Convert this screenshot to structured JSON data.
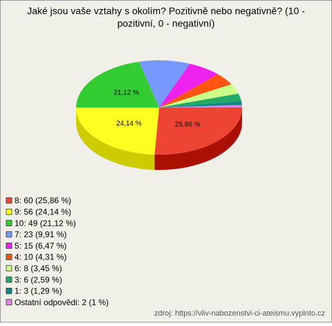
{
  "chart_data": {
    "type": "pie",
    "title": "Jaké jsou vaše vztahy s okolím? Pozitivně nebo negativně? (10 -",
    "subtitle": "pozitivní, 0 - negativní)",
    "categories": [
      "8",
      "9",
      "10",
      "7",
      "5",
      "4",
      "6",
      "3",
      "1",
      "Ostatní odpovědi"
    ],
    "legend_labels": [
      "8: 60 (25,86 %)",
      "9: 56 (24,14 %)",
      "10: 49 (21,12 %)",
      "7: 23 (9,91 %)",
      "5: 15 (6,47 %)",
      "4: 10 (4,31 %)",
      "6: 8 (3,45 %)",
      "3: 6 (2,59 %)",
      "1: 3 (1,29 %)",
      "Ostatní odpovědi: 2 (1 %)"
    ],
    "values": [
      25.86,
      24.14,
      21.12,
      9.91,
      6.47,
      4.31,
      3.45,
      2.59,
      1.29,
      0.86
    ],
    "value_labels": [
      "25,86 %",
      "24,14 %",
      "21,12 %",
      null,
      null,
      null,
      null,
      null,
      null,
      null
    ],
    "colors": [
      "#ee4433",
      "#ffff22",
      "#33cc33",
      "#7799ff",
      "#ee22ee",
      "#ff5511",
      "#ccff88",
      "#22aa66",
      "#118888",
      "#dd88dd"
    ],
    "side_colors": [
      "#aa1100",
      "#cccc00",
      "#229922",
      "#4466cc",
      "#aa11aa",
      "#cc3300",
      "#99cc66",
      "#117744",
      "#066060",
      "#aa55aa"
    ],
    "source": "zdroj: https://vliv-nabozenstvi-ci-ateismu.vyplnto.cz"
  }
}
